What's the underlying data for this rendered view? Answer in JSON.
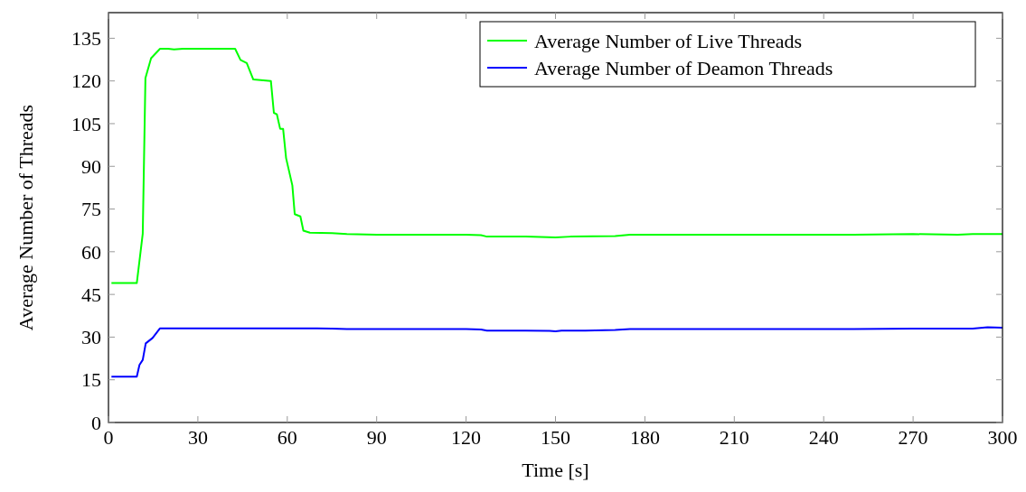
{
  "chart_data": {
    "type": "line",
    "xlabel": "Time [s]",
    "ylabel": "Average Number of Threads",
    "xlim": [
      0,
      300
    ],
    "ylim": [
      0,
      144
    ],
    "xticks": [
      0,
      30,
      60,
      90,
      120,
      150,
      180,
      210,
      240,
      270,
      300
    ],
    "yticks": [
      0,
      15,
      30,
      45,
      60,
      75,
      90,
      105,
      120,
      135
    ],
    "grid": false,
    "legend": "top right",
    "line_style": "solid",
    "marker": "none",
    "series": [
      {
        "name": "Average Number of Live Threads",
        "color": "#00ff00",
        "x": [
          1,
          9.5,
          11.5,
          12.4,
          14.3,
          17.3,
          20,
          22,
          25,
          30,
          35,
          40,
          42.5,
          44.3,
          46.4,
          48.6,
          54.5,
          55.5,
          56.5,
          57.6,
          58.6,
          59.6,
          61.7,
          62.5,
          64.4,
          65.4,
          67.6,
          75,
          80,
          90,
          100,
          110,
          120,
          125,
          127,
          140,
          150,
          155,
          170,
          175,
          190,
          210,
          230,
          250,
          270,
          285,
          290,
          300
        ],
        "values": [
          49,
          49,
          66.3,
          121,
          128,
          131.3,
          131.3,
          131.1,
          131.3,
          131.3,
          131.3,
          131.3,
          131.3,
          127.4,
          126.3,
          120.5,
          120,
          108.8,
          108.3,
          103.2,
          103.2,
          92.9,
          83.3,
          73.2,
          72.4,
          67.4,
          66.7,
          66.5,
          66.2,
          66,
          66,
          66,
          66,
          65.8,
          65.3,
          65.3,
          65,
          65.3,
          65.5,
          66,
          66,
          66,
          66,
          66,
          66.2,
          66,
          66.2,
          66.2
        ]
      },
      {
        "name": "Average Number of Deamon Threads",
        "color": "#0000ff",
        "x": [
          1,
          9.5,
          10.4,
          11.5,
          12.5,
          14.8,
          17.3,
          20,
          30,
          40,
          50,
          60,
          70,
          75,
          80,
          90,
          100,
          110,
          120,
          125,
          127,
          140,
          148,
          150,
          152,
          160,
          170,
          175,
          190,
          210,
          230,
          250,
          270,
          285,
          290,
          295,
          300
        ],
        "values": [
          16.1,
          16.1,
          20.2,
          22,
          27.8,
          29.7,
          33.1,
          33.1,
          33.1,
          33.1,
          33.1,
          33.1,
          33.1,
          33,
          32.8,
          32.8,
          32.8,
          32.8,
          32.8,
          32.7,
          32.3,
          32.3,
          32.2,
          32,
          32.3,
          32.3,
          32.5,
          32.8,
          32.8,
          32.8,
          32.8,
          32.8,
          33,
          33,
          33,
          33.5,
          33.3
        ]
      }
    ]
  }
}
